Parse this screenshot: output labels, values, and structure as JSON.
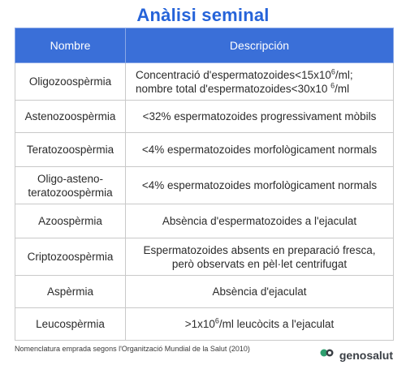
{
  "title": "Anàlisi seminal",
  "table": {
    "headers": [
      "Nombre",
      "Descripción"
    ],
    "rows": [
      {
        "name": "Oligozoospèrmia",
        "desc_line1_pre": "Concentració d'espermatozoides<15x10",
        "desc_line1_sup": "6",
        "desc_line1_post": "/ml;",
        "desc_line2_pre": "nombre total d'espermatozoides<30x10 ",
        "desc_line2_sup": "6",
        "desc_line2_post": "/ml"
      },
      {
        "name": "Astenozoospèrmia",
        "desc": "<32% espermatozoides progressivament mòbils"
      },
      {
        "name": "Teratozoospèrmia",
        "desc": "<4% espermatozoides morfològicament normals"
      },
      {
        "name_line1": "Oligo-asteno-",
        "name_line2": "teratozoospèrmia",
        "desc": "<4% espermatozoides morfològicament normals"
      },
      {
        "name": "Azoospèrmia",
        "desc": "Absència d'espermatozoides a l'ejaculat"
      },
      {
        "name": "Criptozoospèrmia",
        "desc_line1": "Espermatozoides absents en preparació fresca,",
        "desc_line2": "però observats en pèl·let centrifugat"
      },
      {
        "name": "Aspèrmia",
        "desc": "Absència d'ejaculat"
      },
      {
        "name": "Leucospèrmia",
        "desc_pre": ">1x10",
        "desc_sup": "6",
        "desc_post": "/ml leucòcits a l'ejaculat"
      }
    ]
  },
  "footnote": "Nomenclatura emprada segons l'Organització Mundial de la Salut (2010)",
  "brand": {
    "name": "genosalut",
    "icon": "genosalut-logo-icon",
    "color": "#2e9e6e"
  },
  "colors": {
    "header_bg": "#3a6fd8",
    "title": "#2563d9"
  }
}
